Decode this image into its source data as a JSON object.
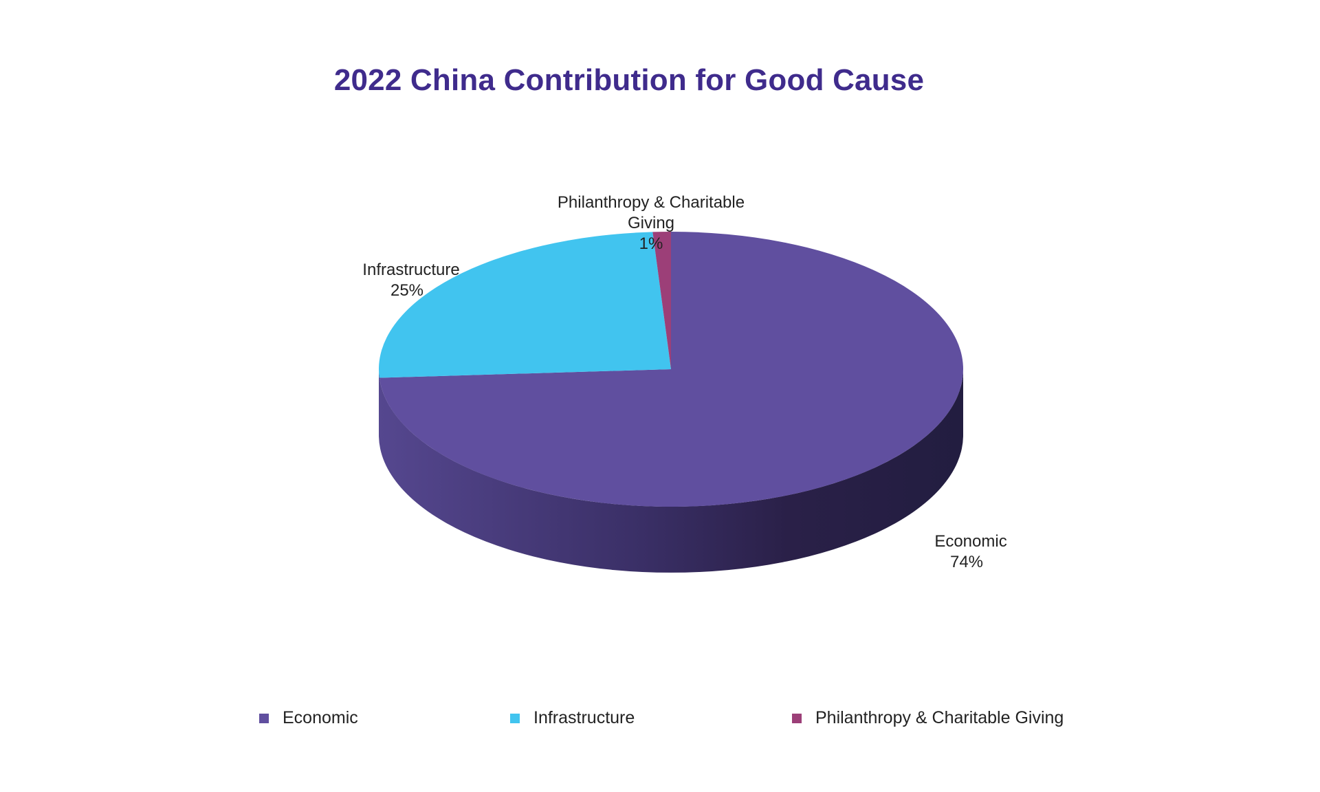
{
  "chart_data": {
    "type": "pie",
    "title": "2022 China Contribution for Good Cause",
    "slices": [
      {
        "name": "Economic",
        "value": 74,
        "label": "74%",
        "color": "#604f9f"
      },
      {
        "name": "Infrastructure",
        "value": 25,
        "label": "25%",
        "color": "#41c4ef"
      },
      {
        "name": "Philanthropy & Charitable Giving",
        "value": 1,
        "label": "1%",
        "color": "#9c3f78"
      }
    ],
    "legend_position": "bottom",
    "style": "3d"
  },
  "labels": {
    "philanthropy_line1": "Philanthropy & Charitable",
    "philanthropy_line2": "Giving"
  }
}
